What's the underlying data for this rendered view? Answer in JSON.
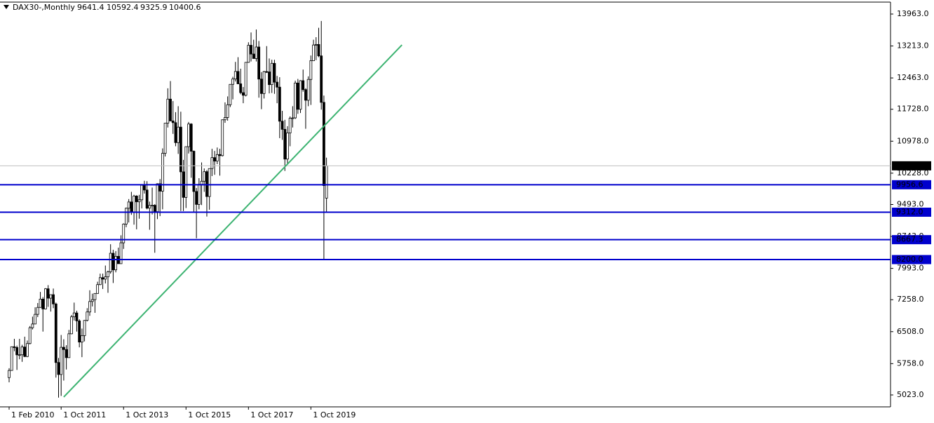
{
  "chart_data": {
    "type": "candlestick",
    "title": "DAX30-,Monthly",
    "categories": [
      "1 Feb 2010",
      null,
      null,
      null,
      null,
      null,
      null,
      null,
      null,
      null,
      null,
      null,
      null,
      null,
      null,
      null,
      null,
      null,
      null,
      null,
      "1 Oct 2011",
      null,
      null,
      null,
      null,
      null,
      null,
      null,
      null,
      null,
      null,
      null,
      null,
      null,
      null,
      null,
      null,
      null,
      null,
      null,
      null,
      null,
      null,
      null,
      "1 Oct 2013",
      null,
      null,
      null,
      null,
      null,
      null,
      null,
      null,
      null,
      null,
      null,
      null,
      null,
      null,
      null,
      null,
      null,
      null,
      null,
      null,
      null,
      null,
      null,
      "1 Oct 2015",
      null,
      null,
      null,
      null,
      null,
      null,
      null,
      null,
      null,
      null,
      null,
      null,
      null,
      null,
      null,
      null,
      null,
      null,
      null,
      null,
      null,
      null,
      null,
      "1 Oct 2017",
      null,
      null,
      null,
      null,
      null,
      null,
      null,
      null,
      null,
      null,
      null,
      null,
      null,
      null,
      null,
      null,
      null,
      null,
      null,
      null,
      null,
      null,
      null,
      "1 Oct 2019",
      null,
      null,
      null,
      null,
      null,
      null
    ],
    "open": [
      5430,
      5598,
      6154,
      6136,
      5964,
      5966,
      6148,
      5925,
      6229,
      6601,
      6688,
      6914,
      7077,
      7272,
      7041,
      7514,
      7294,
      7376,
      7159,
      5784,
      5502,
      6141,
      6088,
      5898,
      6458,
      6856,
      6947,
      6761,
      6264,
      6416,
      6772,
      6970,
      7216,
      7260,
      7405,
      7612,
      7776,
      7741,
      7795,
      7914,
      8348,
      7959,
      8276,
      8103,
      8594,
      9033,
      9405,
      9552,
      9306,
      9692,
      9556,
      9603,
      9943,
      9833,
      9407,
      9470,
      9474,
      9326,
      9980,
      9806,
      10694,
      11402,
      11966,
      11454,
      11414,
      10945,
      11309,
      10259,
      9660,
      10850,
      11382,
      10743,
      9798,
      9495,
      9966,
      10039,
      10263,
      9680,
      10337,
      10593,
      10511,
      10665,
      10640,
      11481,
      11535,
      11834,
      12313,
      12438,
      12615,
      12325,
      12118,
      12056,
      12829,
      13230,
      13024,
      12918,
      13189,
      12436,
      12097,
      12612,
      12605,
      12306,
      12806,
      12364,
      12247,
      11447,
      11257,
      10559,
      11173,
      11516,
      11526,
      12344,
      11727,
      12399,
      12189,
      11939,
      12428,
      12867,
      13236,
      13249,
      12981,
      11890,
      9641.4
    ],
    "high": [
      5650,
      6160,
      6340,
      6180,
      6340,
      6200,
      6390,
      6300,
      6640,
      6860,
      7080,
      7180,
      7440,
      7320,
      7530,
      7600,
      7350,
      7520,
      7190,
      5890,
      6430,
      6330,
      6190,
      6550,
      6900,
      7190,
      7000,
      6800,
      6580,
      6780,
      7060,
      7480,
      7400,
      7410,
      7680,
      7870,
      7870,
      8060,
      7940,
      8560,
      8430,
      8400,
      8480,
      8770,
      9050,
      9420,
      9620,
      9790,
      9720,
      9710,
      9720,
      9950,
      10050,
      10040,
      9560,
      9890,
      9500,
      9990,
      10090,
      10810,
      11400,
      12220,
      12390,
      11920,
      11660,
      11800,
      11670,
      10540,
      10850,
      11430,
      11400,
      10760,
      9880,
      10110,
      10480,
      10340,
      10300,
      10340,
      10800,
      10750,
      10830,
      10800,
      11490,
      11890,
      12030,
      12310,
      12490,
      12840,
      12950,
      12680,
      12250,
      12830,
      13300,
      13530,
      13360,
      13600,
      13330,
      12600,
      12630,
      13210,
      12920,
      12890,
      12890,
      12510,
      12480,
      11690,
      11480,
      11330,
      11560,
      11800,
      12400,
      12440,
      12410,
      12660,
      12220,
      12500,
      12990,
      13360,
      13420,
      13640,
      13800,
      12050,
      10592.4
    ],
    "low": [
      5320,
      5590,
      6050,
      5610,
      5860,
      5800,
      5910,
      5910,
      6210,
      6560,
      6690,
      6850,
      7070,
      6510,
      7030,
      7090,
      6980,
      7060,
      5430,
      4960,
      5000,
      5360,
      5620,
      5900,
      6450,
      6770,
      6510,
      6140,
      5910,
      6280,
      6750,
      6880,
      7100,
      6950,
      7400,
      7600,
      7510,
      7640,
      7420,
      7870,
      7650,
      7900,
      8100,
      8120,
      8450,
      8960,
      9070,
      9250,
      9020,
      8910,
      9160,
      9400,
      9750,
      9380,
      8900,
      9260,
      8360,
      9150,
      9220,
      9380,
      10620,
      11300,
      11450,
      11150,
      10860,
      10680,
      9340,
      9340,
      9410,
      10690,
      10120,
      9310,
      8700,
      9380,
      9480,
      9790,
      9210,
      9370,
      10160,
      10190,
      10440,
      10170,
      10620,
      11410,
      11460,
      11780,
      11960,
      12380,
      12320,
      12080,
      11870,
      12030,
      12820,
      12850,
      12950,
      12850,
      12000,
      11730,
      11980,
      12580,
      12100,
      12110,
      12090,
      11870,
      11050,
      11010,
      10280,
      10440,
      10860,
      11300,
      11500,
      11620,
      11640,
      12140,
      11270,
      11800,
      11830,
      12860,
      12880,
      12950,
      11720,
      8200,
      9325.9
    ],
    "close": [
      5598,
      6154,
      6136,
      5964,
      5966,
      6148,
      5925,
      6229,
      6601,
      6688,
      6914,
      7077,
      7272,
      7041,
      7514,
      7294,
      7376,
      7159,
      5784,
      5502,
      6141,
      6088,
      5898,
      6458,
      6856,
      6947,
      6761,
      6264,
      6416,
      6772,
      6970,
      7216,
      7260,
      7405,
      7612,
      7776,
      7741,
      7795,
      7914,
      8348,
      7959,
      8276,
      8103,
      8594,
      9033,
      9405,
      9552,
      9306,
      9692,
      9556,
      9603,
      9943,
      9833,
      9407,
      9470,
      9474,
      9326,
      9980,
      9806,
      10694,
      11402,
      11966,
      11454,
      11414,
      10945,
      11309,
      10259,
      9660,
      10850,
      11382,
      10743,
      9798,
      9495,
      9966,
      10039,
      10263,
      9680,
      10337,
      10593,
      10511,
      10665,
      10640,
      11481,
      11535,
      11834,
      12313,
      12438,
      12615,
      12325,
      12118,
      12056,
      12829,
      13230,
      13024,
      12918,
      13189,
      12436,
      12097,
      12612,
      12605,
      12306,
      12806,
      12364,
      12247,
      11447,
      11257,
      10559,
      11173,
      11516,
      11526,
      12344,
      11727,
      12399,
      12189,
      11939,
      12428,
      12867,
      13236,
      13249,
      12981,
      11890,
      9936,
      10400.6
    ],
    "ylim": [
      4743,
      14210
    ],
    "yticks": [
      {
        "value": 13963,
        "label": "13963.0"
      },
      {
        "value": 13213,
        "label": "13213.0"
      },
      {
        "value": 12463,
        "label": "12463.0"
      },
      {
        "value": 11728,
        "label": "11728.0"
      },
      {
        "value": 10978,
        "label": "10978.0"
      },
      {
        "value": 10228,
        "label": "10228.0"
      },
      {
        "value": 9493,
        "label": "9493.0"
      },
      {
        "value": 8743,
        "label": "8743.0"
      },
      {
        "value": 7993,
        "label": "7993.0"
      },
      {
        "value": 7258,
        "label": "7258.0"
      },
      {
        "value": 6508,
        "label": "6508.0"
      },
      {
        "value": 5758,
        "label": "5758.0"
      },
      {
        "value": 5023,
        "label": "5023.0"
      }
    ],
    "levels": [
      {
        "value": 9956.6,
        "label": "9956.6"
      },
      {
        "value": 9312,
        "label": "9312.0"
      },
      {
        "value": 8667.3,
        "label": "8667.3"
      },
      {
        "value": 8200,
        "label": "8200.0"
      }
    ],
    "level_color": "#0000cd",
    "trendline": {
      "x": [
        21,
        151
      ],
      "values": [
        4974,
        13238
      ],
      "color": "#3cb371"
    }
  }
}
